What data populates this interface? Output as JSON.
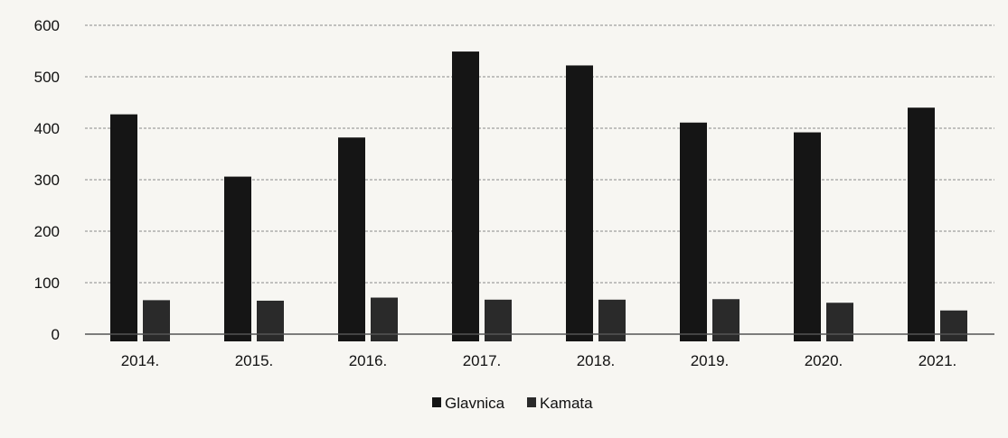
{
  "chart_data": {
    "type": "bar",
    "title": "",
    "xlabel": "",
    "ylabel": "",
    "categories": [
      "2014.",
      "2015.",
      "2016.",
      "2017.",
      "2018.",
      "2019.",
      "2020.",
      "2021."
    ],
    "series": [
      {
        "name": "Glavnica",
        "values": [
          427,
          306,
          382,
          549,
          522,
          411,
          392,
          440
        ],
        "color": "#151515"
      },
      {
        "name": "Kamata",
        "values": [
          66,
          65,
          71,
          67,
          67,
          68,
          61,
          46
        ],
        "color": "#2a2a2a"
      }
    ],
    "ylim": [
      0,
      600
    ],
    "yticks": [
      0,
      100,
      200,
      300,
      400,
      500,
      600
    ],
    "grid": true,
    "legend": "bottom-center"
  }
}
